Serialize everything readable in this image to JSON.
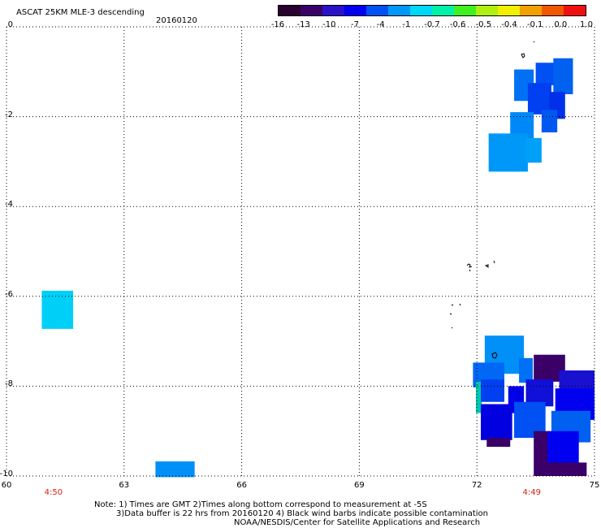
{
  "header": {
    "title": "ASCAT 25KM MLE-3 descending",
    "date": "20160120"
  },
  "colorbar": {
    "colors": [
      "#2a0030",
      "#3a0068",
      "#2a10c8",
      "#0000f0",
      "#0050f4",
      "#0098f8",
      "#00d8f8",
      "#00f0a8",
      "#40f020",
      "#b0f010",
      "#f0f000",
      "#f0a000",
      "#f05800",
      "#f01010"
    ],
    "tick_labels": [
      "-16",
      "-13",
      "-10",
      "-7",
      "-4",
      "-1",
      "-0.7",
      "-0.6",
      "-0.5",
      "-0.4",
      "-0.1",
      "0.0",
      "1.0"
    ]
  },
  "axes": {
    "x_ticks": [
      "60",
      "63",
      "66",
      "69",
      "72",
      "75"
    ],
    "y_ticks": [
      "0",
      "-2",
      "-4",
      "-6",
      "-8",
      "-10"
    ],
    "lon_range": [
      60,
      75
    ],
    "lat_range": [
      0,
      -10
    ],
    "grid": "dotted"
  },
  "swath_times": [
    {
      "label": "4:50",
      "lon": 61.2
    },
    {
      "label": "4:49",
      "lon": 73.4
    }
  ],
  "footer": {
    "line1": "Note: 1) Times are GMT 2)Times along bottom correspond to measurement at -5S",
    "line2": "3)Data buffer is 22 hrs from 20160120 4) Black wind barbs indicate possible contamination",
    "line3": "NOAA/NESDIS/Center for Satellite Applications and Research"
  },
  "data_cells": [
    {
      "lon": 73.8,
      "lat": -1.05,
      "w": 0.6,
      "h": 0.5,
      "color": "#0050f4"
    },
    {
      "lon": 74.2,
      "lat": -1.1,
      "w": 0.5,
      "h": 0.8,
      "color": "#0060f0"
    },
    {
      "lon": 73.2,
      "lat": -1.3,
      "w": 0.5,
      "h": 0.7,
      "color": "#0070f4"
    },
    {
      "lon": 73.6,
      "lat": -1.6,
      "w": 0.6,
      "h": 0.7,
      "color": "#0040f0"
    },
    {
      "lon": 74.05,
      "lat": -1.75,
      "w": 0.4,
      "h": 0.6,
      "color": "#0030e8"
    },
    {
      "lon": 73.15,
      "lat": -2.2,
      "w": 0.6,
      "h": 0.6,
      "color": "#0088f8"
    },
    {
      "lon": 73.85,
      "lat": -2.1,
      "w": 0.4,
      "h": 0.5,
      "color": "#0058f0"
    },
    {
      "lon": 72.8,
      "lat": -2.8,
      "w": 1.0,
      "h": 0.85,
      "color": "#0098f8"
    },
    {
      "lon": 73.45,
      "lat": -2.75,
      "w": 0.4,
      "h": 0.55,
      "color": "#00a0f8"
    },
    {
      "lon": 61.3,
      "lat": -6.3,
      "w": 0.8,
      "h": 0.85,
      "color": "#00d0f8"
    },
    {
      "lon": 64.3,
      "lat": -9.85,
      "w": 1.0,
      "h": 0.35,
      "color": "#0090f8"
    },
    {
      "lon": 72.7,
      "lat": -7.3,
      "w": 1.0,
      "h": 0.85,
      "color": "#0090f8"
    },
    {
      "lon": 72.3,
      "lat": -7.75,
      "w": 0.8,
      "h": 0.55,
      "color": "#0068f4"
    },
    {
      "lon": 73.25,
      "lat": -7.65,
      "w": 0.35,
      "h": 0.55,
      "color": "#0070f4"
    },
    {
      "lon": 73.85,
      "lat": -7.6,
      "w": 0.8,
      "h": 0.6,
      "color": "#3a0068"
    },
    {
      "lon": 74.55,
      "lat": -7.9,
      "w": 0.9,
      "h": 0.5,
      "color": "#1a10d0"
    },
    {
      "lon": 72.05,
      "lat": -8.25,
      "w": 0.15,
      "h": 0.7,
      "color": "#00c8b0"
    },
    {
      "lon": 72.4,
      "lat": -8.1,
      "w": 0.6,
      "h": 0.5,
      "color": "#0040f0"
    },
    {
      "lon": 73.0,
      "lat": -8.3,
      "w": 0.4,
      "h": 0.6,
      "color": "#0000e8"
    },
    {
      "lon": 73.6,
      "lat": -8.15,
      "w": 0.7,
      "h": 0.6,
      "color": "#1010d8"
    },
    {
      "lon": 74.5,
      "lat": -8.4,
      "w": 1.0,
      "h": 0.7,
      "color": "#0000f0"
    },
    {
      "lon": 72.5,
      "lat": -8.8,
      "w": 0.8,
      "h": 0.8,
      "color": "#0000e0"
    },
    {
      "lon": 73.35,
      "lat": -8.75,
      "w": 0.8,
      "h": 0.8,
      "color": "#0050f4"
    },
    {
      "lon": 74.4,
      "lat": -8.9,
      "w": 1.0,
      "h": 0.7,
      "color": "#0060f0"
    },
    {
      "lon": 72.55,
      "lat": -9.25,
      "w": 0.6,
      "h": 0.2,
      "color": "#3a0068"
    },
    {
      "lon": 73.65,
      "lat": -9.5,
      "w": 0.4,
      "h": 1.0,
      "color": "#3a0068"
    },
    {
      "lon": 74.2,
      "lat": -9.5,
      "w": 0.8,
      "h": 1.0,
      "color": "#0000f0"
    },
    {
      "lon": 74.3,
      "lat": -9.85,
      "w": 1.0,
      "h": 0.3,
      "color": "#3a0068"
    }
  ]
}
